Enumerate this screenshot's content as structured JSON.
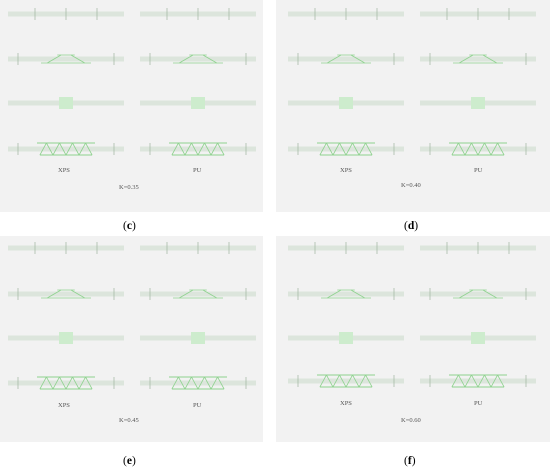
{
  "panels": [
    {
      "id": "c",
      "caption_open": "(",
      "caption_letter": "c",
      "caption_close": ")",
      "k_label": "K=0.35",
      "left_label": "XPS",
      "right_label": "PU"
    },
    {
      "id": "d",
      "caption_open": "(",
      "caption_letter": "d",
      "caption_close": ")",
      "k_label": "K=0.40",
      "left_label": "XPS",
      "right_label": "PU"
    },
    {
      "id": "e",
      "caption_open": "(",
      "caption_letter": "e",
      "caption_close": ")",
      "k_label": "K=0.45",
      "left_label": "XPS",
      "right_label": "PU"
    },
    {
      "id": "f",
      "caption_open": "(",
      "caption_letter": "f",
      "caption_close": ")",
      "k_label": "K=0.60",
      "left_label": "XPS",
      "right_label": "PU"
    }
  ],
  "colors": {
    "panel_background": "#f2f2f2",
    "beam": "#dce5dc",
    "member": "#8fd28f",
    "block": "#cdeccd"
  }
}
